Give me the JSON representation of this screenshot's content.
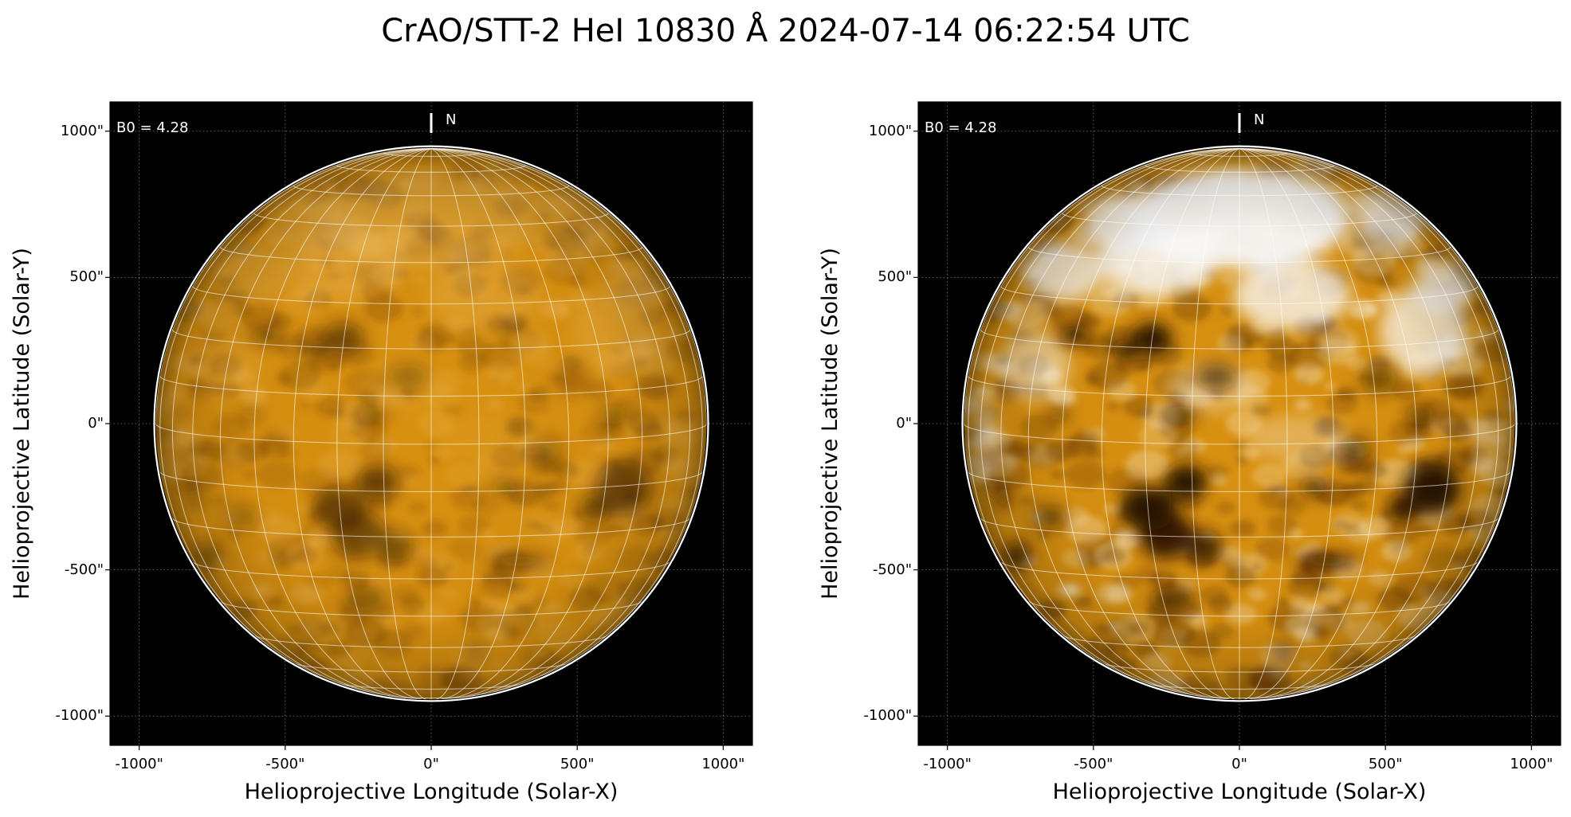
{
  "title": "CrAO/STT-2 HeI 10830 Å 2024-07-14 06:22:54 UTC",
  "colors": {
    "background": "#000000",
    "disk_base": "#d9910f",
    "disk_dark": "#2a1300",
    "disk_bright": "#ffffff",
    "grid": "#ffffff"
  },
  "panels": [
    {
      "id": "left",
      "contrast": "normal",
      "xlabel": "Helioprojective Longitude (Solar-X)",
      "ylabel": "Helioprojective Latitude (Solar-Y)",
      "xtick_labels": [
        "-1000\"",
        "-500\"",
        "0\"",
        "500\"",
        "1000\""
      ],
      "ytick_labels": [
        "1000\"",
        "500\"",
        "0\"",
        "-500\"",
        "-1000\""
      ],
      "xticks": [
        -1000,
        -500,
        0,
        500,
        1000
      ],
      "yticks": [
        1000,
        500,
        0,
        -500,
        -1000
      ],
      "b0_label": "B0 = 4.28",
      "north_label": "N"
    },
    {
      "id": "right",
      "contrast": "enhanced",
      "xlabel": "Helioprojective Longitude (Solar-X)",
      "ylabel": "Helioprojective Latitude (Solar-Y)",
      "xtick_labels": [
        "-1000\"",
        "-500\"",
        "0\"",
        "500\"",
        "1000\""
      ],
      "ytick_labels": [
        "1000\"",
        "500\"",
        "0\"",
        "-500\"",
        "-1000\""
      ],
      "xticks": [
        -1000,
        -500,
        0,
        500,
        1000
      ],
      "yticks": [
        1000,
        500,
        0,
        -500,
        -1000
      ],
      "b0_label": "B0 = 4.28",
      "north_label": "N"
    }
  ],
  "axes": {
    "xlim": [
      -1100,
      1100
    ],
    "ylim": [
      -1100,
      1100
    ],
    "solar_radius": 943,
    "b0_degrees": 4.28,
    "grid_spacing_degrees": 10,
    "coordinate_grid": true
  }
}
